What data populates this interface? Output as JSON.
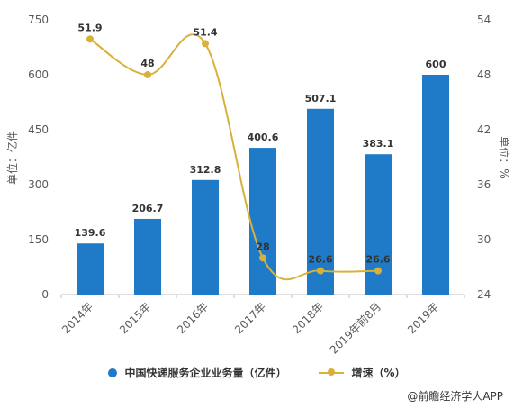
{
  "chart_data": {
    "type": "bar+line",
    "categories": [
      "2014年",
      "2015年",
      "2016年",
      "2017年",
      "2018年",
      "2019年前8月",
      "2019年"
    ],
    "bar_series": {
      "name": "中国快递服务企业业务量（亿件）",
      "values": [
        139.6,
        206.7,
        312.8,
        400.6,
        507.1,
        383.1,
        600
      ],
      "labels": [
        "139.6",
        "206.7",
        "312.8",
        "400.6",
        "507.1",
        "383.1",
        "600"
      ],
      "color": "#1f7ac7"
    },
    "line_series": {
      "name": "增速（%）",
      "values": [
        51.9,
        48,
        51.4,
        28,
        26.6,
        26.6
      ],
      "labels": [
        "51.9",
        "48",
        "51.4",
        "28",
        "26.6",
        "26.6"
      ],
      "color": "#d8b13a"
    },
    "left_axis": {
      "label": "单位：亿件",
      "ylim": [
        0,
        750
      ],
      "ticks": [
        "0",
        "150",
        "300",
        "450",
        "600",
        "750"
      ]
    },
    "right_axis": {
      "label": "单位：%",
      "ylim": [
        24,
        54
      ],
      "ticks": [
        "24",
        "30",
        "36",
        "42",
        "48",
        "54"
      ]
    },
    "grid": false,
    "legend_position": "bottom"
  },
  "source_text": "@前瞻经济学人APP"
}
